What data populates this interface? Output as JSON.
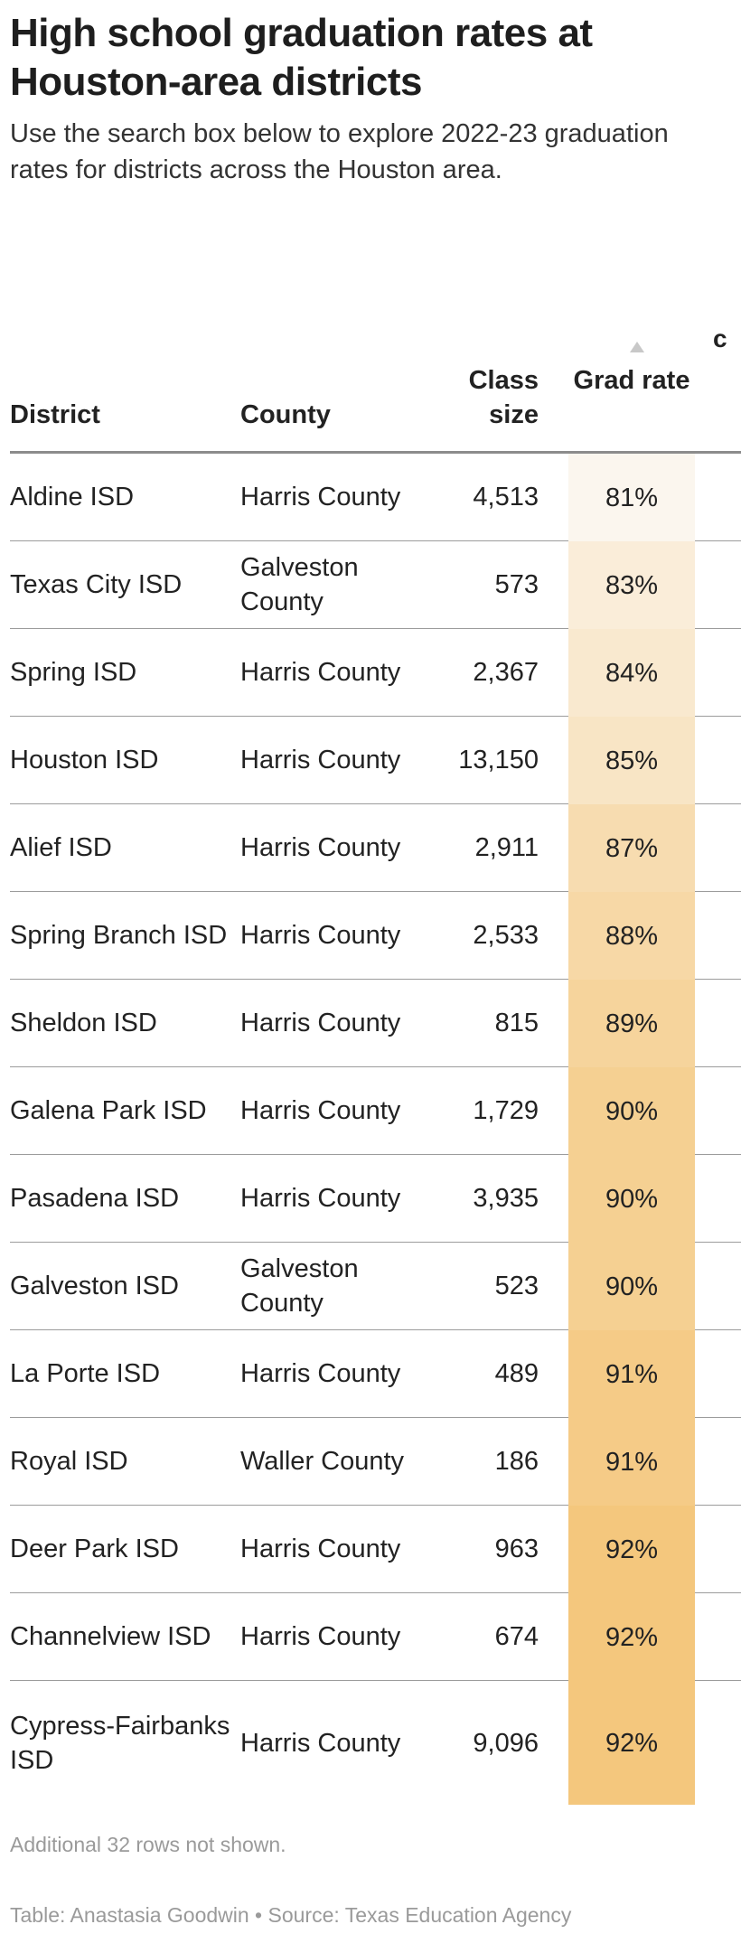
{
  "title": "High school graduation rates at Houston-area districts",
  "subtitle": "Use the search box below to explore 2022-23 graduation rates for districts across the Houston area.",
  "columns": {
    "district": "District",
    "county": "County",
    "class_size": "Class size",
    "grad_rate": "Grad rate",
    "extra": "c"
  },
  "colors": {
    "grad_low": "#fbf6ee",
    "grad_high": "#f4c77d"
  },
  "chart_data": {
    "type": "table",
    "columns": [
      "District",
      "County",
      "Class size",
      "Grad rate"
    ],
    "sort": {
      "column": "Grad rate",
      "direction": "ascending"
    },
    "rows": [
      {
        "district": "Aldine ISD",
        "county": "Harris County",
        "class_size": "4,513",
        "grad_rate": "81%",
        "grad_value": 81
      },
      {
        "district": "Texas City ISD",
        "county": "Galveston County",
        "class_size": "573",
        "grad_rate": "83%",
        "grad_value": 83
      },
      {
        "district": "Spring ISD",
        "county": "Harris County",
        "class_size": "2,367",
        "grad_rate": "84%",
        "grad_value": 84
      },
      {
        "district": "Houston ISD",
        "county": "Harris County",
        "class_size": "13,150",
        "grad_rate": "85%",
        "grad_value": 85
      },
      {
        "district": "Alief ISD",
        "county": "Harris County",
        "class_size": "2,911",
        "grad_rate": "87%",
        "grad_value": 87
      },
      {
        "district": "Spring Branch ISD",
        "county": "Harris County",
        "class_size": "2,533",
        "grad_rate": "88%",
        "grad_value": 88
      },
      {
        "district": "Sheldon ISD",
        "county": "Harris County",
        "class_size": "815",
        "grad_rate": "89%",
        "grad_value": 89
      },
      {
        "district": "Galena Park ISD",
        "county": "Harris County",
        "class_size": "1,729",
        "grad_rate": "90%",
        "grad_value": 90
      },
      {
        "district": "Pasadena ISD",
        "county": "Harris County",
        "class_size": "3,935",
        "grad_rate": "90%",
        "grad_value": 90
      },
      {
        "district": "Galveston ISD",
        "county": "Galveston County",
        "class_size": "523",
        "grad_rate": "90%",
        "grad_value": 90
      },
      {
        "district": "La Porte ISD",
        "county": "Harris County",
        "class_size": "489",
        "grad_rate": "91%",
        "grad_value": 91
      },
      {
        "district": "Royal ISD",
        "county": "Waller County",
        "class_size": "186",
        "grad_rate": "91%",
        "grad_value": 91
      },
      {
        "district": "Deer Park ISD",
        "county": "Harris County",
        "class_size": "963",
        "grad_rate": "92%",
        "grad_value": 92
      },
      {
        "district": "Channelview ISD",
        "county": "Harris County",
        "class_size": "674",
        "grad_rate": "92%",
        "grad_value": 92
      },
      {
        "district": "Cypress-Fairbanks ISD",
        "county": "Harris County",
        "class_size": "9,096",
        "grad_rate": "92%",
        "grad_value": 92
      }
    ]
  },
  "note": "Additional 32 rows not shown.",
  "credit": "Table: Anastasia Goodwin • Source: Texas Education Agency"
}
